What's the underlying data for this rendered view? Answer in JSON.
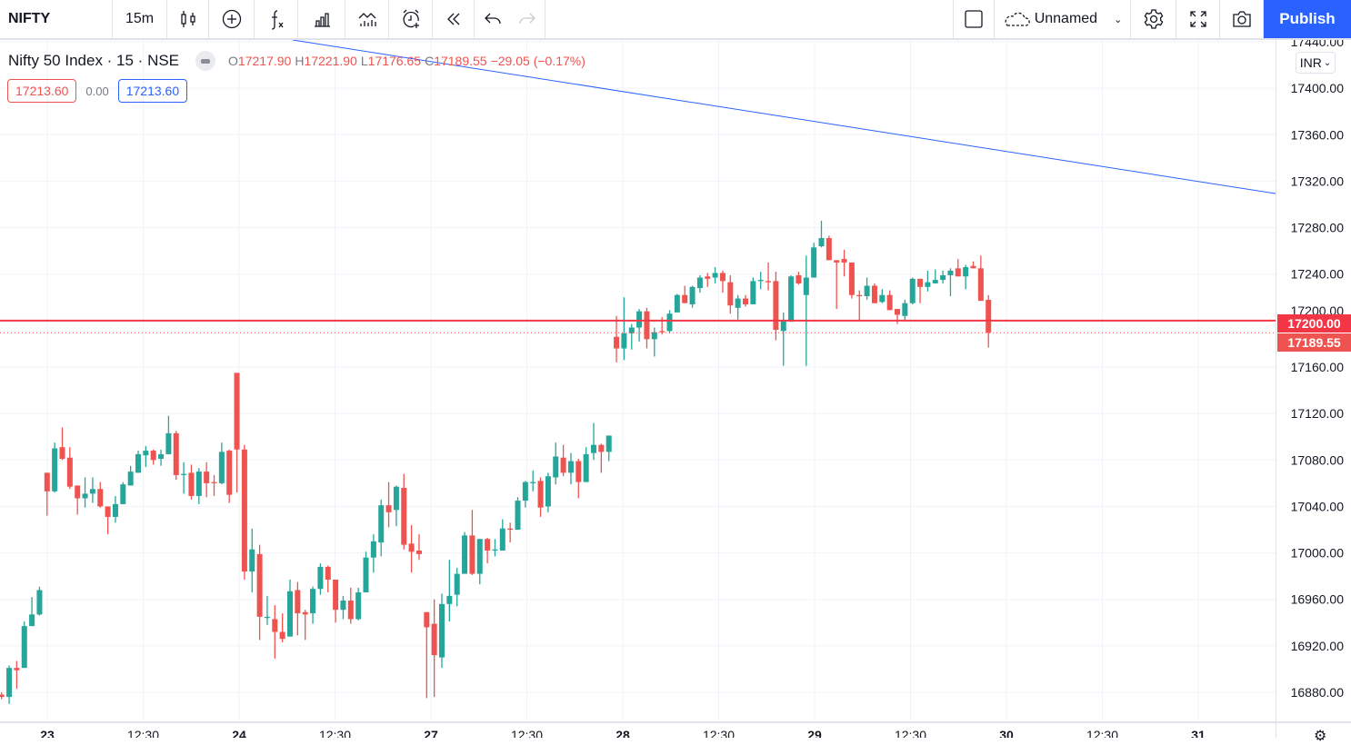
{
  "toolbar": {
    "symbol": "NIFTY",
    "interval": "15m",
    "chart_name": "Unnamed",
    "publish": "Publish"
  },
  "legend": {
    "title": "Nifty 50 Index · 15 · NSE",
    "o_label": "O",
    "o": "17217.90",
    "h_label": "H",
    "h": "17221.90",
    "l_label": "L",
    "l": "17176.65",
    "c_label": "C",
    "c": "17189.55",
    "change": "−29.05 (−0.17%)"
  },
  "pricebox": {
    "bid": "17213.60",
    "spread": "0.00",
    "ask": "17213.60"
  },
  "currency": "INR",
  "tags": {
    "level": "17200.00",
    "last": "17189.55"
  },
  "colors": {
    "up": "#26a69a",
    "down": "#ef5350",
    "accent": "#2962ff",
    "level": "#f23645",
    "trend": "#2962ff"
  },
  "chart_data": {
    "type": "candlestick",
    "ylim": [
      16880,
      17440
    ],
    "yticks": [
      "17440.00",
      "17400.00",
      "17360.00",
      "17320.00",
      "17280.00",
      "17240.00",
      "17200.00",
      "17160.00",
      "17120.00",
      "17080.00",
      "17040.00",
      "17000.00",
      "16960.00",
      "16920.00",
      "16880.00"
    ],
    "xticks": [
      "23",
      "12:30",
      "24",
      "12:30",
      "27",
      "12:30",
      "28",
      "12:30",
      "29",
      "12:30",
      "30",
      "12:30",
      "31"
    ],
    "horizontal_line": 17200,
    "last_price": 17189.55,
    "candles": [
      [
        16878,
        16880,
        16874,
        16876
      ],
      [
        16876,
        16903,
        16870,
        16901
      ],
      [
        16901,
        16907,
        16883,
        16899
      ],
      [
        16901,
        16941,
        16901,
        16937
      ],
      [
        16937,
        16962,
        16937,
        16947
      ],
      [
        16947,
        16971,
        16946,
        16968
      ],
      [
        17069,
        17069,
        17032,
        17053
      ],
      [
        17053,
        17095,
        17052,
        17090
      ],
      [
        17091,
        17108,
        17080,
        17081
      ],
      [
        17082,
        17091,
        17055,
        17057
      ],
      [
        17058,
        17058,
        17033,
        17047
      ],
      [
        17047,
        17065,
        17039,
        17051
      ],
      [
        17051,
        17065,
        17043,
        17055
      ],
      [
        17055,
        17061,
        17039,
        17040
      ],
      [
        17040,
        17040,
        17016,
        17031
      ],
      [
        17031,
        17049,
        17026,
        17042
      ],
      [
        17042,
        17061,
        17042,
        17059
      ],
      [
        17058,
        17075,
        17058,
        17070
      ],
      [
        17069,
        17088,
        17069,
        17085
      ],
      [
        17084,
        17092,
        17074,
        17088
      ],
      [
        17088,
        17089,
        17076,
        17080
      ],
      [
        17081,
        17089,
        17075,
        17085
      ],
      [
        17085,
        17118,
        17085,
        17103
      ],
      [
        17103,
        17105,
        17063,
        17067
      ],
      [
        17067,
        17078,
        17051,
        17068
      ],
      [
        17069,
        17076,
        17046,
        17049
      ],
      [
        17049,
        17073,
        17042,
        17070
      ],
      [
        17070,
        17078,
        17048,
        17060
      ],
      [
        17061,
        17067,
        17049,
        17060
      ],
      [
        17060,
        17095,
        17059,
        17087
      ],
      [
        17088,
        17089,
        17043,
        17050
      ],
      [
        17155,
        17155,
        17052,
        17089
      ],
      [
        17089,
        17093,
        16977,
        16984
      ],
      [
        16984,
        17021,
        16966,
        17003
      ],
      [
        16999,
        17007,
        16925,
        16945
      ],
      [
        16944,
        16963,
        16938,
        16945
      ],
      [
        16943,
        16955,
        16909,
        16932
      ],
      [
        16932,
        16948,
        16923,
        16926
      ],
      [
        16928,
        16977,
        16928,
        16967
      ],
      [
        16968,
        16975,
        16929,
        16948
      ],
      [
        16949,
        16951,
        16925,
        16947
      ],
      [
        16948,
        16971,
        16939,
        16969
      ],
      [
        16969,
        16991,
        16964,
        16988
      ],
      [
        16988,
        16989,
        16966,
        16977
      ],
      [
        16977,
        16977,
        16940,
        16951
      ],
      [
        16951,
        16963,
        16943,
        16959
      ],
      [
        16959,
        16970,
        16939,
        16943
      ],
      [
        16943,
        16970,
        16942,
        16966
      ],
      [
        16966,
        17001,
        16966,
        16996
      ],
      [
        16996,
        17016,
        16983,
        17010
      ],
      [
        17009,
        17046,
        16997,
        17041
      ],
      [
        17041,
        17061,
        17022,
        17035
      ],
      [
        17037,
        17058,
        17023,
        17057
      ],
      [
        17056,
        17068,
        17003,
        17007
      ],
      [
        17008,
        17024,
        16983,
        17001
      ],
      [
        17002,
        17016,
        16994,
        16999
      ],
      [
        16949,
        16949,
        16875,
        16936
      ],
      [
        16939,
        16960,
        16876,
        16912
      ],
      [
        16910,
        16965,
        16901,
        16956
      ],
      [
        16956,
        16994,
        16941,
        16963
      ],
      [
        16964,
        16987,
        16954,
        16982
      ],
      [
        16982,
        17018,
        16982,
        17015
      ],
      [
        17015,
        17037,
        16981,
        16982
      ],
      [
        16982,
        17012,
        16973,
        17012
      ],
      [
        17012,
        17013,
        16991,
        17002
      ],
      [
        17003,
        17012,
        16997,
        17003
      ],
      [
        17002,
        17029,
        17002,
        17021
      ],
      [
        17021,
        17026,
        17009,
        17020
      ],
      [
        17020,
        17048,
        17020,
        17045
      ],
      [
        17045,
        17062,
        17039,
        17061
      ],
      [
        17060,
        17071,
        17053,
        17061
      ],
      [
        17062,
        17065,
        17031,
        17039
      ],
      [
        17040,
        17069,
        17035,
        17066
      ],
      [
        17065,
        17095,
        17059,
        17083
      ],
      [
        17082,
        17093,
        17066,
        17069
      ],
      [
        17069,
        17086,
        17059,
        17079
      ],
      [
        17079,
        17081,
        17047,
        17061
      ],
      [
        17061,
        17091,
        17061,
        17085
      ],
      [
        17086,
        17112,
        17080,
        17093
      ],
      [
        17093,
        17094,
        17069,
        17087
      ],
      [
        17087,
        17101,
        17079,
        17101
      ],
      [
        17186,
        17204,
        17164,
        17176
      ],
      [
        17176,
        17220,
        17166,
        17189
      ],
      [
        17189,
        17197,
        17175,
        17194
      ],
      [
        17194,
        17210,
        17182,
        17208
      ],
      [
        17208,
        17211,
        17176,
        17184
      ],
      [
        17184,
        17194,
        17169,
        17190
      ],
      [
        17191,
        17203,
        17188,
        17190
      ],
      [
        17191,
        17209,
        17189,
        17206
      ],
      [
        17207,
        17223,
        17207,
        17222
      ],
      [
        17222,
        17230,
        17215,
        17215
      ],
      [
        17214,
        17230,
        17211,
        17229
      ],
      [
        17228,
        17239,
        17224,
        17237
      ],
      [
        17238,
        17241,
        17229,
        17236
      ],
      [
        17237,
        17246,
        17232,
        17241
      ],
      [
        17241,
        17243,
        17224,
        17234
      ],
      [
        17233,
        17239,
        17206,
        17213
      ],
      [
        17211,
        17222,
        17201,
        17219
      ],
      [
        17219,
        17222,
        17212,
        17214
      ],
      [
        17214,
        17237,
        17214,
        17234
      ],
      [
        17234,
        17242,
        17227,
        17235
      ],
      [
        17234,
        17250,
        17226,
        17233
      ],
      [
        17234,
        17242,
        17183,
        17192
      ],
      [
        17191,
        17207,
        17161,
        17200
      ],
      [
        17199,
        17239,
        17199,
        17238
      ],
      [
        17239,
        17242,
        17231,
        17232
      ],
      [
        17222,
        17256,
        17161,
        17237
      ],
      [
        17237,
        17267,
        17237,
        17263
      ],
      [
        17264,
        17286,
        17263,
        17271
      ],
      [
        17271,
        17273,
        17252,
        17252
      ],
      [
        17252,
        17252,
        17210,
        17250
      ],
      [
        17253,
        17261,
        17238,
        17250
      ],
      [
        17250,
        17250,
        17219,
        17222
      ],
      [
        17222,
        17226,
        17200,
        17221
      ],
      [
        17221,
        17237,
        17218,
        17230
      ],
      [
        17230,
        17232,
        17215,
        17215
      ],
      [
        17216,
        17227,
        17215,
        17222
      ],
      [
        17222,
        17226,
        17209,
        17209
      ],
      [
        17210,
        17210,
        17197,
        17205
      ],
      [
        17204,
        17218,
        17200,
        17215
      ],
      [
        17215,
        17237,
        17214,
        17236
      ],
      [
        17236,
        17236,
        17215,
        17229
      ],
      [
        17229,
        17243,
        17225,
        17233
      ],
      [
        17232,
        17244,
        17232,
        17235
      ],
      [
        17235,
        17243,
        17232,
        17239
      ],
      [
        17239,
        17245,
        17221,
        17243
      ],
      [
        17245,
        17253,
        17238,
        17238
      ],
      [
        17238,
        17248,
        17227,
        17246
      ],
      [
        17247,
        17251,
        17245,
        17245
      ],
      [
        17245,
        17256,
        17217,
        17217
      ],
      [
        17217.9,
        17221.9,
        17176.65,
        17189.55
      ]
    ]
  }
}
